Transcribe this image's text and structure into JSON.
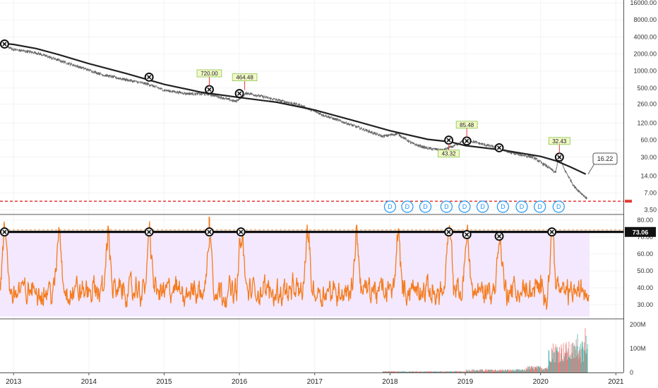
{
  "chart_data": [
    {
      "type": "line",
      "panel": "price",
      "y_scale": "log",
      "y_ticks": [
        "16000.00",
        "8000.00",
        "4000.00",
        "2000.00",
        "1000.00",
        "500.00",
        "260.00",
        "120.00",
        "60.00",
        "30.00",
        "14.00",
        "7.00",
        "3.50"
      ],
      "y_tick_values": [
        16000,
        8000,
        4000,
        2000,
        1000,
        500,
        260,
        120,
        60,
        30,
        14,
        7,
        3.5
      ],
      "ylim": [
        3.0,
        18000
      ],
      "price_series": {
        "x": [
          2012.85,
          2013.0,
          2013.3,
          2013.6,
          2013.9,
          2014.2,
          2014.5,
          2014.8,
          2015.0,
          2015.3,
          2015.6,
          2015.8,
          2015.95,
          2016.1,
          2016.4,
          2016.8,
          2017.1,
          2017.5,
          2017.9,
          2018.1,
          2018.3,
          2018.5,
          2018.7,
          2018.9,
          2019.0,
          2019.2,
          2019.4,
          2019.6,
          2019.9,
          2020.1,
          2020.2,
          2020.25,
          2020.3,
          2020.45,
          2020.62
        ],
        "y": [
          2900,
          2400,
          2100,
          1550,
          1150,
          850,
          700,
          580,
          460,
          400,
          390,
          330,
          290,
          410,
          330,
          250,
          170,
          110,
          70,
          78,
          52,
          43,
          40,
          50,
          62,
          52,
          45,
          36,
          30,
          20,
          16,
          34,
          20,
          9,
          5.5
        ]
      },
      "moving_average": {
        "x": [
          2012.85,
          2013.0,
          2013.3,
          2013.6,
          2014.0,
          2014.5,
          2015.0,
          2015.5,
          2016.0,
          2016.5,
          2017.0,
          2017.5,
          2018.0,
          2018.5,
          2018.8,
          2019.0,
          2019.5,
          2020.0,
          2020.2,
          2020.4,
          2020.6
        ],
        "y": [
          3100,
          2950,
          2500,
          1950,
          1350,
          900,
          580,
          420,
          340,
          280,
          205,
          135,
          88,
          62,
          56,
          48,
          40,
          31,
          26,
          20,
          15
        ]
      },
      "markers": {
        "x": [
          2012.88,
          2014.8,
          2015.6,
          2016.0,
          2018.78,
          2019.02,
          2019.45,
          2020.25
        ],
        "y": [
          3000,
          780,
          470,
          400,
          60,
          58,
          44,
          30
        ]
      },
      "flags": [
        {
          "label": "720.00",
          "x": 2015.6,
          "y": 470
        },
        {
          "label": "464.48",
          "x": 2016.07,
          "y": 400
        },
        {
          "label": "43.32",
          "x": 2018.78,
          "y": 60
        },
        {
          "label": "85.48",
          "x": 2019.02,
          "y": 58
        },
        {
          "label": "32.43",
          "x": 2020.25,
          "y": 30
        }
      ],
      "last_price_label": "16.22",
      "dividend_labels": [
        "D",
        "D",
        "D",
        "D",
        "D",
        "D",
        "D",
        "D",
        "D",
        "D"
      ],
      "dividend_x": [
        2018.0,
        2018.23,
        2018.47,
        2018.75,
        2018.99,
        2019.23,
        2019.5,
        2019.75,
        2019.99,
        2020.24
      ],
      "support_level": 5.0
    },
    {
      "type": "line",
      "panel": "rsi",
      "y_ticks": [
        "80.00",
        "70.00",
        "60.00",
        "50.00",
        "40.00",
        "30.00"
      ],
      "y_tick_values": [
        80,
        70,
        60,
        50,
        40,
        30
      ],
      "ylim": [
        22,
        83
      ],
      "level_label": "73.06",
      "level": 73.06,
      "markers_x": [
        2012.88,
        2014.8,
        2015.6,
        2016.02,
        2018.78,
        2019.02,
        2019.45,
        2020.15
      ]
    },
    {
      "type": "bar",
      "panel": "volume",
      "y_ticks": [
        "200M",
        "100M",
        "0"
      ],
      "y_tick_values": [
        200,
        100,
        0
      ],
      "ylim": [
        0,
        220
      ]
    }
  ],
  "x_axis": {
    "labels": [
      "2013",
      "2014",
      "2015",
      "2016",
      "2017",
      "2018",
      "2019",
      "2020",
      "2021"
    ],
    "values": [
      2013,
      2014,
      2015,
      2016,
      2017,
      2018,
      2019,
      2020,
      2021
    ],
    "xlim": [
      2012.82,
      2021.1
    ]
  },
  "colors": {
    "price": "#666666",
    "ma": "#222222",
    "rsi": "#f57c1f",
    "rsi_fill": "#f3e8fd",
    "level_line": "#000000",
    "support": "#e53935",
    "dividend": "#2196f3",
    "volume_up": "#26a69a",
    "volume_down": "#ef5350",
    "flag_fill": "#f1f8c7",
    "grid": "#f0f3f6"
  }
}
